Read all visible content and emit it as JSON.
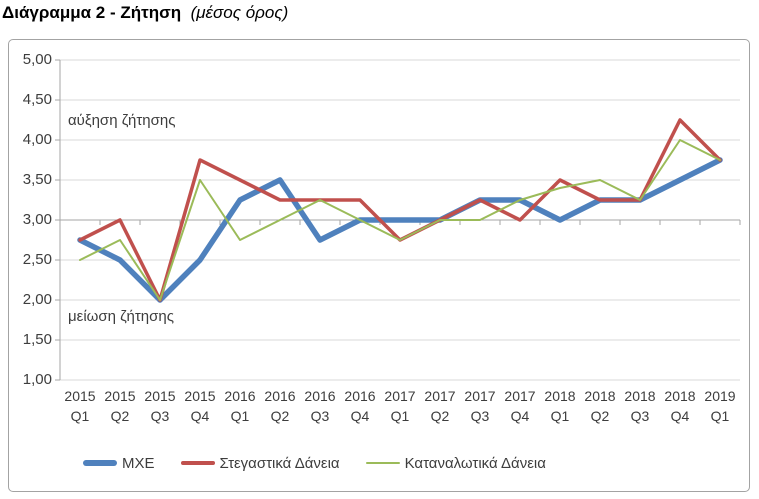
{
  "title": {
    "main": "Διάγραμμα 2 - Ζήτηση",
    "note": "(μέσος όρος)"
  },
  "chart_data": {
    "type": "line",
    "title": "Διάγραμμα 2 - Ζήτηση (μέσος όρος)",
    "categories": [
      "2015 Q1",
      "2015 Q2",
      "2015 Q3",
      "2015 Q4",
      "2016 Q1",
      "2016 Q2",
      "2016 Q3",
      "2016 Q4",
      "2017 Q1",
      "2017 Q2",
      "2017 Q3",
      "2017 Q4",
      "2018 Q1",
      "2018 Q2",
      "2018 Q3",
      "2018 Q4",
      "2019 Q1"
    ],
    "series": [
      {
        "name": "ΜΧΕ",
        "slug": "mxe",
        "color": "#4F81BD",
        "thickness": 5.5,
        "values": [
          2.75,
          2.5,
          2.0,
          2.5,
          3.25,
          3.5,
          2.75,
          3.0,
          3.0,
          3.0,
          3.25,
          3.25,
          3.0,
          3.25,
          3.25,
          3.5,
          3.75
        ]
      },
      {
        "name": "Στεγαστικά Δάνεια",
        "slug": "stegastika-daneia",
        "color": "#C0504D",
        "thickness": 3.5,
        "values": [
          2.75,
          3.0,
          2.0,
          3.75,
          3.5,
          3.25,
          3.25,
          3.25,
          2.75,
          3.0,
          3.25,
          3.0,
          3.5,
          3.25,
          3.25,
          4.25,
          3.75
        ]
      },
      {
        "name": "Καταναλωτικά Δάνεια",
        "slug": "katanalotika-daneia",
        "color": "#9BBB59",
        "thickness": 2,
        "values": [
          2.5,
          2.75,
          2.0,
          3.5,
          2.75,
          3.0,
          3.25,
          3.0,
          2.75,
          3.0,
          3.0,
          3.25,
          3.4,
          3.5,
          3.25,
          4.0,
          3.75
        ]
      }
    ],
    "y_axis": {
      "min": 1.0,
      "max": 5.0,
      "step": 0.5,
      "tick_labels": [
        "5,00",
        "4,50",
        "4,00",
        "3,50",
        "3,00",
        "2,50",
        "2,00",
        "1,50",
        "1,00"
      ],
      "axis_cross_value": 3.0,
      "decimal_separator": ","
    },
    "grid": true,
    "legend_position": "bottom",
    "annotations": [
      {
        "text": "αύξηση ζήτησης",
        "position": "upper-left"
      },
      {
        "text": "μείωση ζήτησης",
        "position": "lower-left"
      }
    ],
    "colors": {
      "gridline": "#D9D9D9",
      "axis": "#A6A6A6",
      "text": "#3D3D3D"
    }
  }
}
